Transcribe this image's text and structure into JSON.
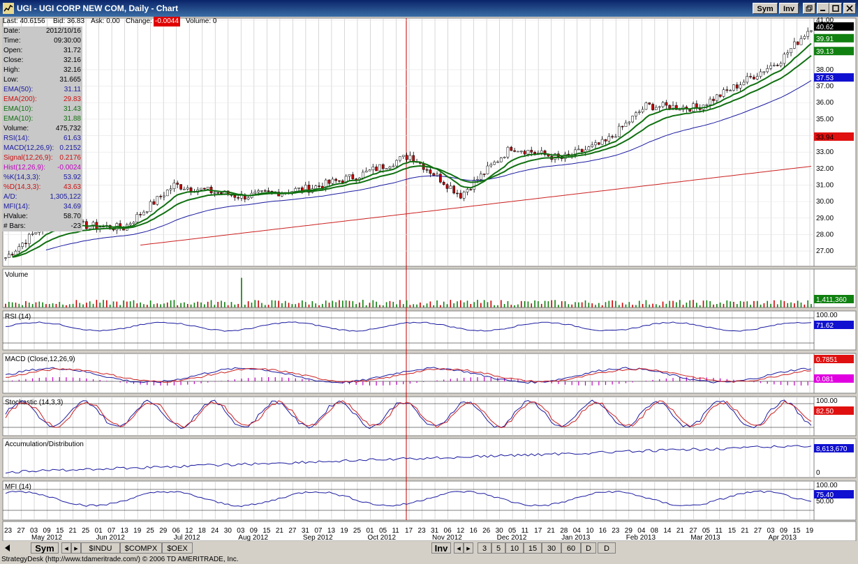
{
  "window": {
    "title": "UGI - UGI CORP NEW COM, Daily - Chart",
    "buttons": {
      "sym": "Sym",
      "inv": "Inv"
    }
  },
  "quote": {
    "last": "Last: 40.6156",
    "bid": "Bid: 36.83",
    "ask": "Ask: 0.00",
    "change_label": "Change:",
    "change_value": "-0.0044",
    "volume": "Volume: 0"
  },
  "data_panel": [
    {
      "k": "Date:",
      "v": "2012/10/16",
      "color": "#000000"
    },
    {
      "k": "Time:",
      "v": "09:30:00",
      "color": "#000000"
    },
    {
      "k": "Open:",
      "v": "31.72",
      "color": "#000000"
    },
    {
      "k": "Close:",
      "v": "32.16",
      "color": "#000000"
    },
    {
      "k": "High:",
      "v": "32.16",
      "color": "#000000"
    },
    {
      "k": "Low:",
      "v": "31.665",
      "color": "#000000"
    },
    {
      "k": "EMA(50):",
      "v": "31.11",
      "color": "#1a1aa0"
    },
    {
      "k": "EMA(200):",
      "v": "29.83",
      "color": "#cc1010"
    },
    {
      "k": "EMA(10):",
      "v": "31.43",
      "color": "#107010"
    },
    {
      "k": "EMA(10):",
      "v": "31.88",
      "color": "#107010"
    },
    {
      "k": "Volume:",
      "v": "475,732",
      "color": "#000000"
    },
    {
      "k": "RSI(14):",
      "v": "61.63",
      "color": "#1a1aa0"
    },
    {
      "k": "MACD(12,26,9):",
      "v": "0.2152",
      "color": "#1a1aa0"
    },
    {
      "k": "Signal(12,26,9):",
      "v": "0.2176",
      "color": "#cc1010"
    },
    {
      "k": "Hist(12,26,9):",
      "v": "-0.0024",
      "color": "#c000c0"
    },
    {
      "k": "%K(14,3,3):",
      "v": "53.92",
      "color": "#1a1aa0"
    },
    {
      "k": "%D(14,3,3):",
      "v": "43.63",
      "color": "#cc1010"
    },
    {
      "k": "A/D:",
      "v": "1,305,122",
      "color": "#1a1aa0"
    },
    {
      "k": "MFI(14):",
      "v": "34.69",
      "color": "#1a1aa0"
    },
    {
      "k": "HValue:",
      "v": "58.70",
      "color": "#000000"
    },
    {
      "k": "# Bars:",
      "v": "-23",
      "color": "#000000"
    }
  ],
  "price_axis": [
    "41.00",
    "38.00",
    "37.00",
    "36.00",
    "35.00",
    "34.00",
    "33.00",
    "32.00",
    "31.00",
    "30.00",
    "29.00",
    "28.00",
    "27.00"
  ],
  "price_markers": [
    {
      "v": "40.62",
      "bg": "#000000",
      "fg": "#ffffff"
    },
    {
      "v": "39.91",
      "bg": "#108010",
      "fg": "#ffffff"
    },
    {
      "v": "39.13",
      "bg": "#108010",
      "fg": "#ffffff"
    },
    {
      "v": "37.53",
      "bg": "#1010d0",
      "fg": "#ffffff"
    },
    {
      "v": "33.94",
      "bg": "#e01010",
      "fg": "#000000"
    }
  ],
  "panels": {
    "volume": {
      "label": "Volume",
      "marker": "1,411,360"
    },
    "rsi": {
      "label": "RSI (14)",
      "axis_top": "100.00",
      "marker": "71.62"
    },
    "macd": {
      "label": "MACD (Close,12,26,9)",
      "marker1": "0.7851",
      "marker2": "0.081"
    },
    "stoch": {
      "label": "Stochastic (14,3,3)",
      "axis_top": "100.00",
      "marker": "82.50"
    },
    "ad": {
      "label": "Accumulation/Distribution",
      "marker": "8,613,670",
      "axis_bottom": "0"
    },
    "mfi": {
      "label": "MFI (14)",
      "axis_top": "100.00",
      "marker": "75.40",
      "axis_mid": "50.00"
    }
  },
  "x_days": [
    "23",
    "27",
    "03",
    "09",
    "15",
    "21",
    "25",
    "01",
    "07",
    "13",
    "19",
    "25",
    "29",
    "06",
    "12",
    "18",
    "24",
    "30",
    "03",
    "09",
    "15",
    "21",
    "27",
    "31",
    "07",
    "13",
    "19",
    "25",
    "01",
    "05",
    "11",
    "17",
    "23",
    "31",
    "06",
    "12",
    "16",
    "26",
    "30",
    "05",
    "11",
    "17",
    "21",
    "28",
    "04",
    "10",
    "16",
    "23",
    "29",
    "04",
    "08",
    "14",
    "21",
    "27",
    "05",
    "11",
    "15",
    "21",
    "27",
    "03",
    "09",
    "15",
    "19"
  ],
  "x_months": [
    "May 2012",
    "Jun 2012",
    "Jul 2012",
    "Aug 2012",
    "Sep 2012",
    "Oct 2012",
    "Nov 2012",
    "Dec 2012",
    "Jan 2013",
    "Feb 2013",
    "Mar 2013",
    "Apr 2013"
  ],
  "tabs": {
    "sym": "Sym",
    "symbols": [
      "$INDU",
      "$COMPX",
      "$OEX"
    ],
    "inv": "Inv",
    "periods": [
      "3",
      "5",
      "10",
      "15",
      "30",
      "60",
      "D",
      "D"
    ]
  },
  "status": "StrategyDesk (http://www.tdameritrade.com/) © 2006 TD AMERITRADE, Inc."
}
